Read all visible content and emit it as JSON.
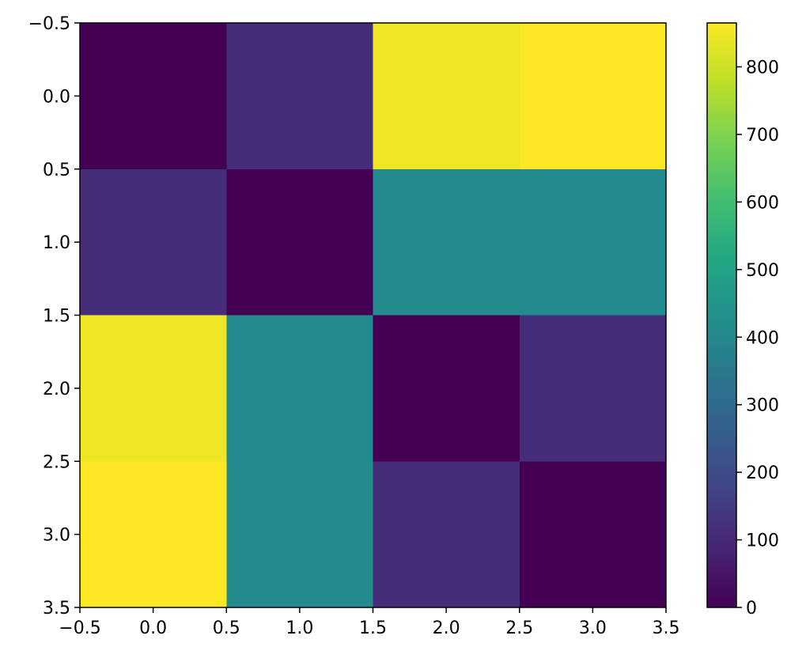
{
  "chart_data": {
    "type": "heatmap",
    "title": "",
    "xlabel": "",
    "ylabel": "",
    "xlim": [
      -0.5,
      3.5
    ],
    "ylim": [
      3.5,
      -0.5
    ],
    "x_ticks": [
      "−0.5",
      "0.0",
      "0.5",
      "1.0",
      "1.5",
      "2.0",
      "2.5",
      "3.0",
      "3.5"
    ],
    "y_ticks": [
      "−0.5",
      "0.0",
      "0.5",
      "1.0",
      "1.5",
      "2.0",
      "2.5",
      "3.0",
      "3.5"
    ],
    "values": [
      [
        0,
        110,
        845,
        865
      ],
      [
        110,
        0,
        410,
        410
      ],
      [
        845,
        410,
        0,
        110
      ],
      [
        865,
        410,
        110,
        0
      ]
    ],
    "colorbar": {
      "min": 0,
      "max": 865,
      "ticks": [
        "0",
        "100",
        "200",
        "300",
        "400",
        "500",
        "600",
        "700",
        "800"
      ],
      "colormap": "viridis"
    }
  }
}
